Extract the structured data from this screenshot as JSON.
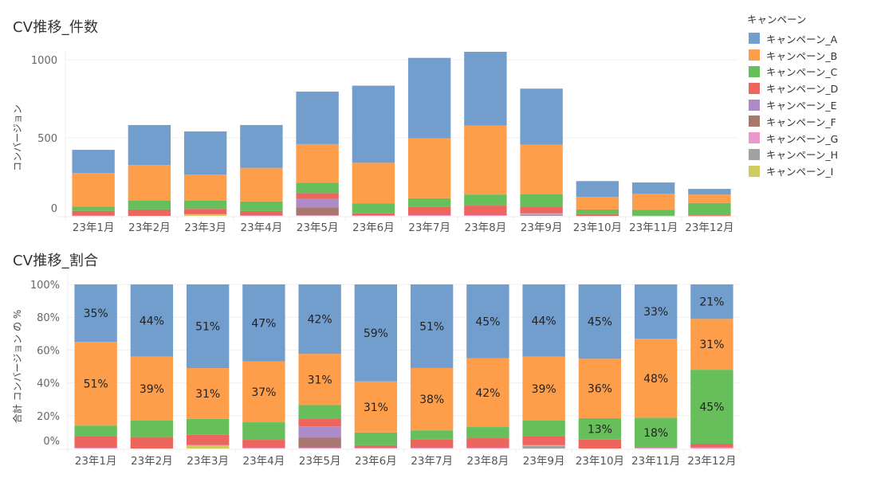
{
  "legend": {
    "title": "キャンペーン",
    "items": [
      {
        "key": "A",
        "label": "キャンペーン_A",
        "color": "#729ece"
      },
      {
        "key": "B",
        "label": "キャンペーン_B",
        "color": "#ff9e4a"
      },
      {
        "key": "C",
        "label": "キャンペーン_C",
        "color": "#67bf5c"
      },
      {
        "key": "D",
        "label": "キャンペーン_D",
        "color": "#ed665d"
      },
      {
        "key": "E",
        "label": "キャンペーン_E",
        "color": "#ad8bc9"
      },
      {
        "key": "F",
        "label": "キャンペーン_F",
        "color": "#a8786e"
      },
      {
        "key": "G",
        "label": "キャンペーン_G",
        "color": "#ed97ca"
      },
      {
        "key": "H",
        "label": "キャンペーン_H",
        "color": "#a2a2a2"
      },
      {
        "key": "I",
        "label": "キャンペーン_I",
        "color": "#cdcc5d"
      }
    ]
  },
  "chart_data": [
    {
      "type": "bar",
      "stacked": true,
      "title": "CV推移_件数",
      "xlabel": "",
      "ylabel": "コンバージョン",
      "ylim": [
        0,
        1000
      ],
      "yticks": [
        0,
        500,
        1000
      ],
      "ytick_labels": [
        "0",
        "500",
        "1000"
      ],
      "grid": true,
      "legend_position": "right",
      "categories": [
        "23年1月",
        "23年2月",
        "23年3月",
        "23年4月",
        "23年5月",
        "23年6月",
        "23年7月",
        "23年8月",
        "23年9月",
        "23年10月",
        "23年11月",
        "23年12月"
      ],
      "series": [
        {
          "name": "キャンペーン_A",
          "key": "A",
          "values": [
            148,
            256,
            276,
            274,
            336,
            494,
            515,
            473,
            359,
            101,
            71,
            36
          ]
        },
        {
          "name": "キャンペーン_B",
          "key": "B",
          "values": [
            216,
            227,
            168,
            215,
            248,
            259,
            384,
            441,
            318,
            81,
            103,
            54
          ]
        },
        {
          "name": "キャンペーン_C",
          "key": "C",
          "values": [
            27,
            58,
            52,
            62,
            66,
            65,
            55,
            71,
            79,
            29,
            39,
            78
          ]
        },
        {
          "name": "キャンペーン_D",
          "key": "D",
          "values": [
            30,
            41,
            34,
            28,
            38,
            13,
            53,
            61,
            43,
            12,
            0,
            4
          ]
        },
        {
          "name": "キャンペーン_E",
          "key": "E",
          "values": [
            0,
            0,
            0,
            0,
            54,
            0,
            0,
            0,
            0,
            0,
            0,
            0
          ]
        },
        {
          "name": "キャンペーン_F",
          "key": "F",
          "values": [
            0,
            0,
            0,
            0,
            50,
            0,
            0,
            0,
            0,
            0,
            0,
            0
          ]
        },
        {
          "name": "キャンペーン_G",
          "key": "G",
          "values": [
            2,
            0,
            3,
            3,
            4,
            3,
            5,
            5,
            4,
            0,
            1,
            1
          ]
        },
        {
          "name": "キャンペーン_H",
          "key": "H",
          "values": [
            0,
            0,
            0,
            0,
            0,
            0,
            0,
            0,
            12,
            0,
            0,
            0
          ]
        },
        {
          "name": "キャンペーン_I",
          "key": "I",
          "values": [
            0,
            0,
            8,
            0,
            0,
            0,
            0,
            0,
            0,
            0,
            0,
            0
          ]
        }
      ]
    },
    {
      "type": "bar",
      "stacked": true,
      "normalized": true,
      "title": "CV推移_割合",
      "xlabel": "",
      "ylabel": "合計 コンバージョン の %",
      "ylim": [
        0,
        100
      ],
      "yticks": [
        0,
        20,
        40,
        60,
        80,
        100
      ],
      "ytick_labels": [
        "0%",
        "20%",
        "40%",
        "60%",
        "80%",
        "100%"
      ],
      "grid": true,
      "categories": [
        "23年1月",
        "23年2月",
        "23年3月",
        "23年4月",
        "23年5月",
        "23年6月",
        "23年7月",
        "23年8月",
        "23年9月",
        "23年10月",
        "23年11月",
        "23年12月"
      ],
      "series_percent": [
        {
          "name": "キャンペーン_A",
          "key": "A",
          "values": [
            35,
            44,
            51,
            47,
            42,
            59,
            51,
            45,
            44,
            45,
            33,
            21
          ]
        },
        {
          "name": "キャンペーン_B",
          "key": "B",
          "values": [
            51,
            39,
            31,
            37,
            31,
            31,
            38,
            42,
            39,
            36,
            48,
            31
          ]
        },
        {
          "name": "キャンペーン_C",
          "key": "C",
          "values": [
            6.4,
            10,
            9.6,
            10.7,
            8.2,
            7.8,
            5.4,
            6.8,
            9.7,
            13,
            18.2,
            45.1
          ]
        },
        {
          "name": "キャンペーン_D",
          "key": "D",
          "values": [
            7.1,
            7,
            6.3,
            4.8,
            4.7,
            1.6,
            5.2,
            5.8,
            5.3,
            5.4,
            0,
            2.3
          ]
        },
        {
          "name": "キャンペーン_E",
          "key": "E",
          "values": [
            0,
            0,
            0,
            0,
            6.7,
            0,
            0,
            0,
            0,
            0,
            0,
            0
          ]
        },
        {
          "name": "キャンペーン_F",
          "key": "F",
          "values": [
            0,
            0,
            0,
            0,
            6.2,
            0,
            0,
            0,
            0,
            0,
            0,
            0
          ]
        },
        {
          "name": "キャンペーン_G",
          "key": "G",
          "values": [
            0.5,
            0,
            0.6,
            0.5,
            0.5,
            0.4,
            0.5,
            0.5,
            0.5,
            0,
            0.5,
            0.6
          ]
        },
        {
          "name": "キャンペーン_H",
          "key": "H",
          "values": [
            0,
            0,
            0,
            0,
            0,
            0,
            0,
            0,
            1.5,
            0,
            0,
            0
          ]
        },
        {
          "name": "キャンペーン_I",
          "key": "I",
          "values": [
            0,
            0,
            1.5,
            0,
            0,
            0,
            0,
            0,
            0,
            0,
            0,
            0
          ]
        }
      ],
      "data_labels": [
        {
          "category": "23年1月",
          "key": "A",
          "text": "35%"
        },
        {
          "category": "23年1月",
          "key": "B",
          "text": "51%"
        },
        {
          "category": "23年2月",
          "key": "A",
          "text": "44%"
        },
        {
          "category": "23年2月",
          "key": "B",
          "text": "39%"
        },
        {
          "category": "23年3月",
          "key": "A",
          "text": "51%"
        },
        {
          "category": "23年3月",
          "key": "B",
          "text": "31%"
        },
        {
          "category": "23年4月",
          "key": "A",
          "text": "47%"
        },
        {
          "category": "23年4月",
          "key": "B",
          "text": "37%"
        },
        {
          "category": "23年5月",
          "key": "A",
          "text": "42%"
        },
        {
          "category": "23年5月",
          "key": "B",
          "text": "31%"
        },
        {
          "category": "23年6月",
          "key": "A",
          "text": "59%"
        },
        {
          "category": "23年6月",
          "key": "B",
          "text": "31%"
        },
        {
          "category": "23年7月",
          "key": "A",
          "text": "51%"
        },
        {
          "category": "23年7月",
          "key": "B",
          "text": "38%"
        },
        {
          "category": "23年8月",
          "key": "A",
          "text": "45%"
        },
        {
          "category": "23年8月",
          "key": "B",
          "text": "42%"
        },
        {
          "category": "23年9月",
          "key": "A",
          "text": "44%"
        },
        {
          "category": "23年9月",
          "key": "B",
          "text": "39%"
        },
        {
          "category": "23年10月",
          "key": "A",
          "text": "45%"
        },
        {
          "category": "23年10月",
          "key": "B",
          "text": "36%"
        },
        {
          "category": "23年10月",
          "key": "C",
          "text": "13%"
        },
        {
          "category": "23年11月",
          "key": "A",
          "text": "33%"
        },
        {
          "category": "23年11月",
          "key": "B",
          "text": "48%"
        },
        {
          "category": "23年11月",
          "key": "C",
          "text": "18%"
        },
        {
          "category": "23年12月",
          "key": "A",
          "text": "21%"
        },
        {
          "category": "23年12月",
          "key": "B",
          "text": "31%"
        },
        {
          "category": "23年12月",
          "key": "C",
          "text": "45%"
        }
      ]
    }
  ]
}
